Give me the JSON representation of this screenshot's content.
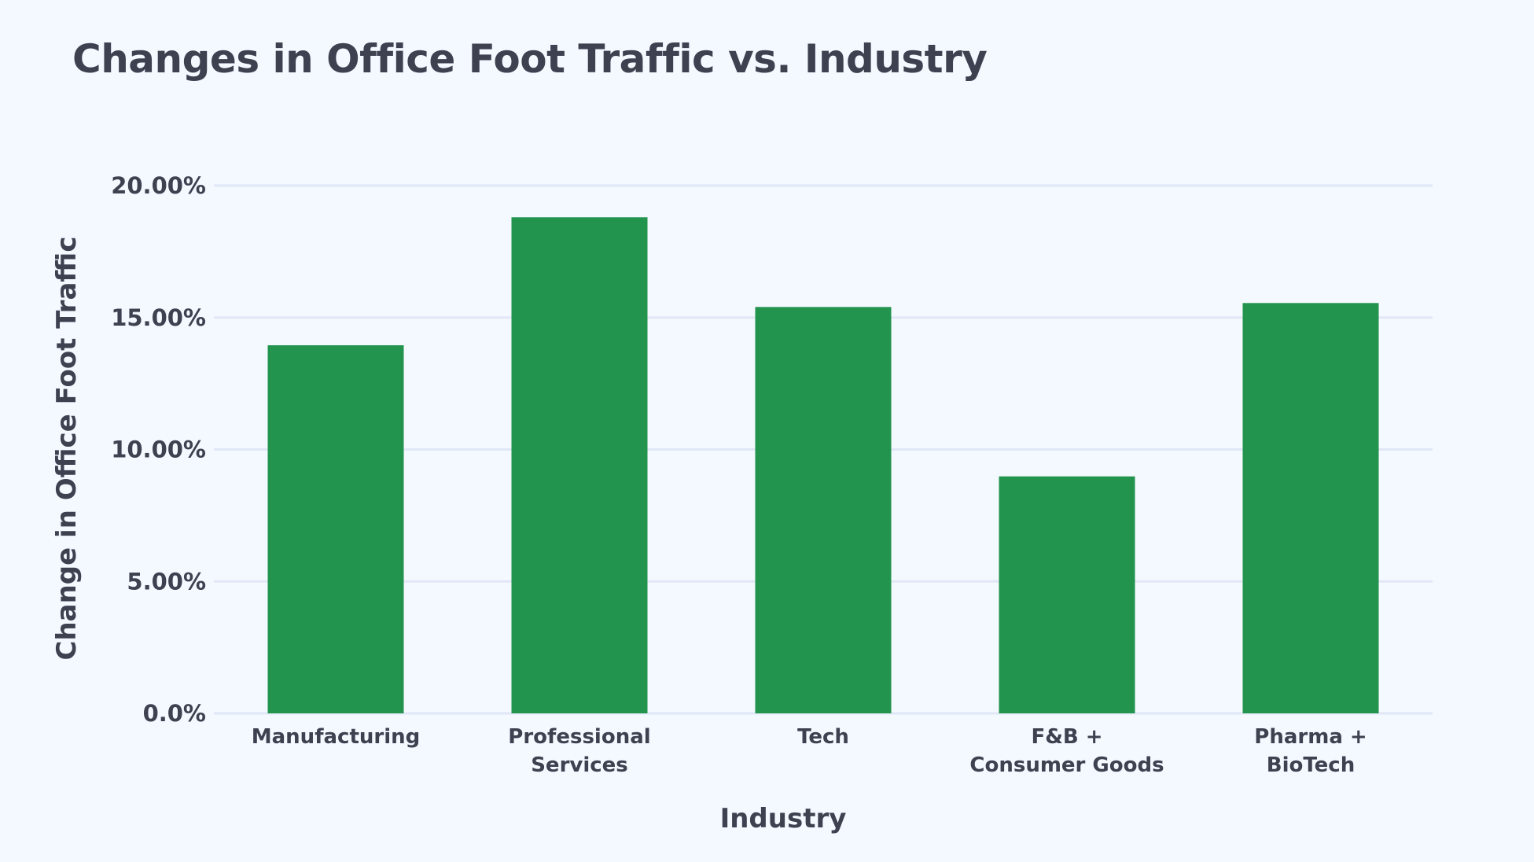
{
  "chart_data": {
    "type": "bar",
    "title": "Changes in Office Foot Traffic vs. Industry",
    "xlabel": "Industry",
    "ylabel": "Change in Office Foot Traffic",
    "categories": [
      [
        "Manufacturing"
      ],
      [
        "Professional",
        "Services"
      ],
      [
        "Tech"
      ],
      [
        "F&B +",
        "Consumer Goods"
      ],
      [
        "Pharma +",
        "BioTech"
      ]
    ],
    "values": [
      0.1395,
      0.188,
      0.154,
      0.0898,
      0.1555
    ],
    "ylim": [
      0,
      0.2
    ],
    "yticks": [
      0,
      0.05,
      0.1,
      0.15,
      0.2
    ],
    "ytick_labels": [
      "0.0%",
      "5.00%",
      "10.00%",
      "15.00%",
      "20.00%"
    ],
    "grid": true,
    "bar_color": "#22944e",
    "grid_color": "#e1e7f6"
  }
}
